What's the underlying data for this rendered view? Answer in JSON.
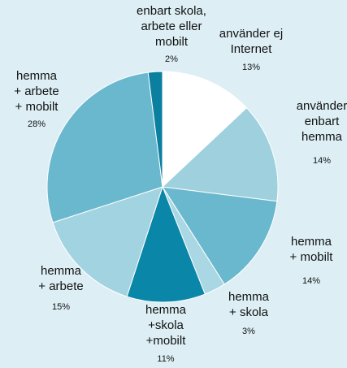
{
  "chart_data": {
    "type": "pie",
    "categories": [
      "använder ej\nInternet",
      "använder\nenbart\nhemma",
      "hemma\n+ mobilt",
      "hemma\n+ skola",
      "hemma\n+skola\n+mobilt",
      "hemma\n+ arbete",
      "hemma\n+ arbete\n+ mobilt",
      "enbart skola,\narbete eller\nmobilt"
    ],
    "values": [
      13,
      14,
      14,
      3,
      11,
      15,
      28,
      2
    ],
    "value_labels": [
      "13%",
      "14%",
      "14%",
      "3%",
      "11%",
      "15%",
      "28%",
      "2%"
    ],
    "colors": [
      "#ffffff",
      "#9ed0de",
      "#6ab8cd",
      "#a9d7e3",
      "#0a87a8",
      "#a2d3e0",
      "#6ab8cd",
      "#0a7fa0"
    ]
  }
}
